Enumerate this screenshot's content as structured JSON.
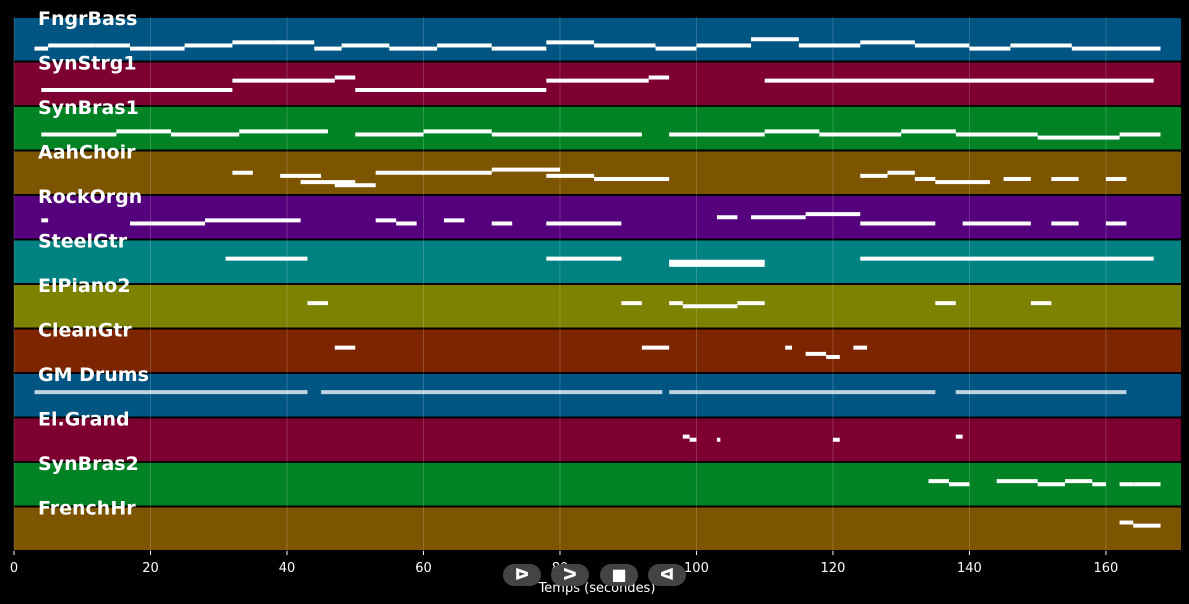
{
  "chart_data": {
    "type": "piano-roll",
    "xlabel": "Temps (secondes)",
    "xlim": [
      0,
      171
    ],
    "xticks": [
      0,
      20,
      40,
      60,
      80,
      100,
      120,
      140,
      160
    ],
    "grid": true,
    "tracks": [
      {
        "name": "FngrBass",
        "color": "#005582",
        "pitch_range": [
          0,
          10
        ],
        "notes": [
          [
            3,
            5,
            2
          ],
          [
            5,
            12,
            3
          ],
          [
            12,
            17,
            3
          ],
          [
            17,
            25,
            2
          ],
          [
            25,
            32,
            3
          ],
          [
            32,
            38,
            4
          ],
          [
            38,
            44,
            4
          ],
          [
            44,
            48,
            2
          ],
          [
            48,
            55,
            3
          ],
          [
            55,
            62,
            2
          ],
          [
            62,
            70,
            3
          ],
          [
            70,
            78,
            2
          ],
          [
            78,
            85,
            4
          ],
          [
            85,
            94,
            3
          ],
          [
            94,
            100,
            2
          ],
          [
            100,
            108,
            3
          ],
          [
            108,
            115,
            5
          ],
          [
            115,
            124,
            3
          ],
          [
            124,
            132,
            4
          ],
          [
            132,
            140,
            3
          ],
          [
            140,
            146,
            2
          ],
          [
            146,
            155,
            3
          ],
          [
            155,
            162,
            2
          ],
          [
            162,
            168,
            2
          ]
        ]
      },
      {
        "name": "SynStrg1",
        "color": "#7D0030",
        "pitch_range": [
          0,
          10
        ],
        "notes": [
          [
            4,
            32,
            3
          ],
          [
            32,
            47,
            6
          ],
          [
            47,
            50,
            7
          ],
          [
            50,
            78,
            3
          ],
          [
            78,
            93,
            6
          ],
          [
            93,
            96,
            7
          ],
          [
            110,
            167,
            6
          ]
        ]
      },
      {
        "name": "SynBras1",
        "color": "#008225",
        "pitch_range": [
          0,
          10
        ],
        "notes": [
          [
            4,
            15,
            3
          ],
          [
            15,
            23,
            4
          ],
          [
            23,
            33,
            3
          ],
          [
            33,
            46,
            4
          ],
          [
            50,
            60,
            3
          ],
          [
            60,
            70,
            4
          ],
          [
            70,
            92,
            3
          ],
          [
            96,
            110,
            3
          ],
          [
            110,
            118,
            4
          ],
          [
            118,
            130,
            3
          ],
          [
            130,
            138,
            4
          ],
          [
            138,
            150,
            3
          ],
          [
            150,
            162,
            2
          ],
          [
            162,
            168,
            3
          ]
        ]
      },
      {
        "name": "AahChoir",
        "color": "#7D5500",
        "pitch_range": [
          0,
          10
        ],
        "notes": [
          [
            32,
            35,
            5
          ],
          [
            39,
            45,
            4
          ],
          [
            42,
            50,
            2
          ],
          [
            47,
            53,
            1
          ],
          [
            53,
            70,
            5
          ],
          [
            70,
            80,
            6
          ],
          [
            78,
            85,
            4
          ],
          [
            85,
            96,
            3
          ],
          [
            124,
            128,
            4
          ],
          [
            128,
            132,
            5
          ],
          [
            132,
            135,
            3
          ],
          [
            135,
            143,
            2
          ],
          [
            145,
            149,
            3
          ],
          [
            152,
            156,
            3
          ],
          [
            160,
            163,
            3
          ]
        ]
      },
      {
        "name": "RockOrgn",
        "color": "#55007D",
        "pitch_range": [
          0,
          10
        ],
        "notes": [
          [
            4,
            5,
            4
          ],
          [
            17,
            28,
            3
          ],
          [
            28,
            42,
            4
          ],
          [
            53,
            56,
            4
          ],
          [
            56,
            59,
            3
          ],
          [
            63,
            66,
            4
          ],
          [
            70,
            73,
            3
          ],
          [
            78,
            89,
            3
          ],
          [
            103,
            106,
            5
          ],
          [
            108,
            116,
            5
          ],
          [
            116,
            124,
            6
          ],
          [
            124,
            135,
            3
          ],
          [
            139,
            149,
            3
          ],
          [
            152,
            156,
            3
          ],
          [
            160,
            163,
            3
          ]
        ]
      },
      {
        "name": "SteelGtr",
        "color": "#008282",
        "pitch_range": [
          0,
          10
        ],
        "notes": [
          [
            31,
            43,
            6
          ],
          [
            78,
            89,
            6
          ],
          [
            96,
            110,
            4
          ],
          [
            96,
            110,
            5
          ],
          [
            124,
            167,
            6
          ]
        ]
      },
      {
        "name": "ElPiano2",
        "color": "#7D8200",
        "pitch_range": [
          0,
          10
        ],
        "notes": [
          [
            43,
            46,
            6
          ],
          [
            89,
            92,
            6
          ],
          [
            96,
            98,
            6
          ],
          [
            98,
            106,
            5
          ],
          [
            106,
            110,
            6
          ],
          [
            135,
            138,
            6
          ],
          [
            149,
            152,
            6
          ]
        ]
      },
      {
        "name": "CleanGtr",
        "color": "#7D2500",
        "pitch_range": [
          0,
          10
        ],
        "notes": [
          [
            47,
            50,
            6
          ],
          [
            92,
            96,
            6
          ],
          [
            113,
            114,
            6
          ],
          [
            116,
            119,
            4
          ],
          [
            119,
            121,
            3
          ],
          [
            123,
            125,
            6
          ]
        ]
      },
      {
        "name": "GM Drums",
        "color": "#005582",
        "pitch_range": [
          0,
          10
        ],
        "notes": [
          [
            3,
            43,
            6
          ],
          [
            45,
            95,
            6
          ],
          [
            96,
            135,
            6
          ],
          [
            138,
            163,
            6
          ]
        ]
      },
      {
        "name": "El.Grand",
        "color": "#7D0030",
        "pitch_range": [
          0,
          10
        ],
        "notes": [
          [
            98,
            99,
            6
          ],
          [
            99,
            100,
            5
          ],
          [
            103,
            103.5,
            5
          ],
          [
            120,
            121,
            5
          ],
          [
            138,
            139,
            6
          ]
        ]
      },
      {
        "name": "SynBras2",
        "color": "#008225",
        "pitch_range": [
          0,
          10
        ],
        "notes": [
          [
            134,
            137,
            6
          ],
          [
            137,
            140,
            5
          ],
          [
            144,
            148,
            6
          ],
          [
            148,
            150,
            6
          ],
          [
            150,
            154,
            5
          ],
          [
            154,
            158,
            6
          ],
          [
            158,
            160,
            5
          ],
          [
            162,
            164,
            5
          ],
          [
            164,
            168,
            5
          ]
        ]
      },
      {
        "name": "FrenchHr",
        "color": "#7D5500",
        "pitch_range": [
          0,
          10
        ],
        "notes": [
          [
            162,
            164,
            7
          ],
          [
            164,
            168,
            6
          ]
        ]
      }
    ]
  },
  "controls": {
    "play_icon": "play-outline-icon",
    "forward_icon": "fast-forward-icon",
    "stop_icon": "stop-icon",
    "back_icon": "rewind-icon",
    "play_glyph": "ᐅ",
    "forward_glyph": "ᐳ",
    "stop_glyph": "■",
    "back_glyph": "ᐊ"
  }
}
